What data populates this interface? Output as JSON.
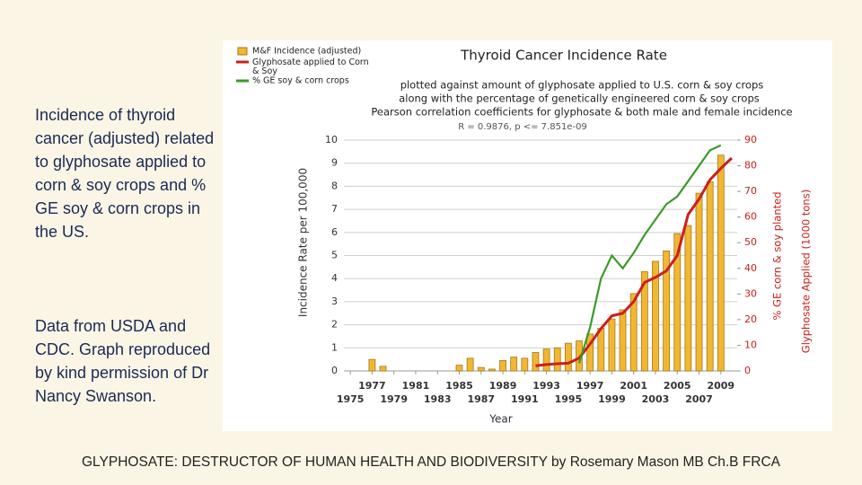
{
  "slide": {
    "text_1": "Incidence of thyroid cancer (adjusted) related to glyphosate applied to corn & soy crops and % GE soy & corn crops in the US.",
    "text_2": "Data from USDA and CDC. Graph reproduced by kind permission of Dr Nancy Swanson.",
    "footer": "GLYPHOSATE: DESTRUCTOR OF HUMAN HEALTH AND BIODIVERSITY by Rosemary Mason MB Ch.B FRCA"
  },
  "chart_data": {
    "type": "bar",
    "title": "Thyroid Cancer Incidence Rate",
    "subtitle": [
      "plotted against amount of glyphosate applied to U.S. corn & soy crops",
      "along with the percentage of genetically engineered corn & soy crops",
      "Pearson correlation coefficients for glyphosate & both male and female incidence",
      "R = 0.9876, p <= 7.851e-09"
    ],
    "x_label": "Year",
    "y_label": "Incidence Rate per 100,000",
    "y2_label": [
      "% GE corn & soy planted",
      "Glyphosate Applied (1000 tons)"
    ],
    "x": [
      1975,
      1976,
      1977,
      1978,
      1979,
      1980,
      1981,
      1982,
      1983,
      1984,
      1985,
      1986,
      1987,
      1988,
      1989,
      1990,
      1991,
      1992,
      1993,
      1994,
      1995,
      1996,
      1997,
      1998,
      1999,
      2000,
      2001,
      2002,
      2003,
      2004,
      2005,
      2006,
      2007,
      2008,
      2009,
      2010
    ],
    "xlim": [
      1974,
      2010.5
    ],
    "xticks": [
      1975,
      1977,
      1979,
      1981,
      1983,
      1985,
      1987,
      1989,
      1991,
      1993,
      1995,
      1997,
      1999,
      2001,
      2003,
      2005,
      2007,
      2009
    ],
    "ylim": [
      0,
      10
    ],
    "yticks": [
      0,
      1,
      2,
      3,
      4,
      5,
      6,
      7,
      8,
      9,
      10
    ],
    "y2lim": [
      0,
      90
    ],
    "y2ticks": [
      0,
      10,
      20,
      30,
      40,
      50,
      60,
      70,
      80,
      90
    ],
    "grid": true,
    "legend": "top-left",
    "series": [
      {
        "name": "M&F Incidence (adjusted)",
        "type": "bar",
        "color": "#f2b632",
        "values": [
          null,
          null,
          0.5,
          0.2,
          null,
          null,
          null,
          null,
          null,
          null,
          0.25,
          0.55,
          0.15,
          0.08,
          0.45,
          0.6,
          0.55,
          0.8,
          0.95,
          1.0,
          1.2,
          1.3,
          1.6,
          1.85,
          2.25,
          2.65,
          3.35,
          4.3,
          4.75,
          5.2,
          5.95,
          6.3,
          7.7,
          8.2,
          9.35,
          null
        ]
      },
      {
        "name": "Glyphosate applied to Corn & Soy",
        "type": "line",
        "axis": "y2",
        "color": "#c8201e",
        "values": [
          null,
          null,
          null,
          null,
          null,
          null,
          null,
          null,
          null,
          null,
          null,
          null,
          null,
          null,
          null,
          null,
          null,
          2,
          2.5,
          2.8,
          3,
          5,
          10.5,
          16.5,
          21.5,
          22.5,
          27,
          34.5,
          36.5,
          39,
          45,
          61,
          67,
          74.5,
          79,
          83
        ]
      },
      {
        "name": "% GE soy & corn crops",
        "type": "line",
        "axis": "y2",
        "color": "#3c9a2a",
        "values": [
          null,
          null,
          null,
          null,
          null,
          null,
          null,
          null,
          null,
          null,
          null,
          null,
          null,
          null,
          null,
          null,
          null,
          null,
          null,
          null,
          null,
          3,
          17,
          36,
          45,
          40,
          46,
          53,
          59,
          65,
          68,
          74,
          80,
          86,
          88,
          null
        ]
      }
    ]
  }
}
